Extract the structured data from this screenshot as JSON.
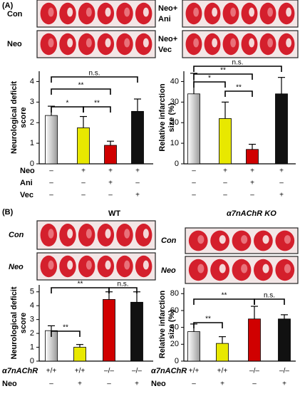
{
  "panels": [
    {
      "label": "(A)",
      "photo_labels": [
        [
          "Con"
        ],
        [
          "Neo"
        ],
        [
          "Neo+",
          "Ani"
        ],
        [
          "Neo+",
          "Vec"
        ]
      ]
    },
    {
      "label": "(B)",
      "headers": [
        "WT",
        "α7nAChR KO"
      ],
      "photo_labels": [
        [
          "Con"
        ],
        [
          "Neo"
        ],
        [
          "Con"
        ],
        [
          "Neo"
        ]
      ]
    }
  ],
  "chart_data": [
    {
      "type": "bar",
      "ylabel": [
        "Neurological deficit",
        "score"
      ],
      "values": [
        2.35,
        1.75,
        0.9,
        2.55
      ],
      "errors": [
        0.45,
        0.55,
        0.2,
        0.6
      ],
      "colors": [
        "#d9d9d9",
        "#e8e800",
        "#d00000",
        "#111111"
      ],
      "ylim": [
        0,
        4.5
      ],
      "yticks": [
        0,
        1,
        2,
        3,
        4
      ],
      "annotations": [
        "n.s.",
        "**",
        "*",
        "**"
      ],
      "condition_rows": [
        {
          "name": "Neo",
          "labels": [
            "–",
            "+",
            "+",
            "+"
          ]
        },
        {
          "name": "Ani",
          "labels": [
            "–",
            "–",
            "+",
            "–"
          ]
        },
        {
          "name": "Vec",
          "labels": [
            "–",
            "–",
            "–",
            "+"
          ]
        }
      ]
    },
    {
      "type": "bar",
      "ylabel": [
        "Relative infarction",
        "size (%)"
      ],
      "values": [
        34,
        22,
        7,
        34
      ],
      "errors": [
        10,
        8,
        2.5,
        8
      ],
      "colors": [
        "#d9d9d9",
        "#e8e800",
        "#d00000",
        "#111111"
      ],
      "ylim": [
        0,
        45
      ],
      "yticks": [
        0,
        10,
        20,
        30,
        40
      ],
      "annotations": [
        "n.s.",
        "*",
        "**",
        "**"
      ],
      "condition_rows": [
        {
          "labels": [
            "–",
            "+",
            "+",
            "+"
          ]
        },
        {
          "labels": [
            "–",
            "–",
            "+",
            "–"
          ]
        },
        {
          "labels": [
            "–",
            "–",
            "–",
            "+"
          ]
        }
      ]
    },
    {
      "type": "bar",
      "ylabel": [
        "Neurological deficit",
        "score"
      ],
      "values": [
        2.2,
        1.0,
        4.45,
        4.25
      ],
      "errors": [
        0.35,
        0.2,
        0.55,
        0.75
      ],
      "colors": [
        "#d9d9d9",
        "#e8e800",
        "#d00000",
        "#111111"
      ],
      "ylim": [
        0,
        5.5
      ],
      "yticks": [
        0,
        1,
        2,
        3,
        4,
        5
      ],
      "annotations": [
        "**",
        "**",
        "n.s."
      ],
      "condition_rows": [
        {
          "name": "α7nAChR",
          "labels": [
            "+/+",
            "+/+",
            "–/–",
            "–/–"
          ]
        },
        {
          "name": "Neo",
          "labels": [
            "–",
            "+",
            "–",
            "+"
          ]
        }
      ]
    },
    {
      "type": "bar",
      "ylabel": [
        "Relative infarction",
        "size (%)"
      ],
      "values": [
        35,
        21,
        50,
        50
      ],
      "errors": [
        9,
        8,
        15,
        5
      ],
      "colors": [
        "#d9d9d9",
        "#e8e800",
        "#d00000",
        "#111111"
      ],
      "ylim": [
        0,
        87
      ],
      "yticks": [
        0,
        20,
        40,
        60,
        80
      ],
      "annotations": [
        "**",
        "**",
        "n.s."
      ],
      "condition_rows": [
        {
          "name": "α7nAChR",
          "labels": [
            "+/+",
            "+/+",
            "–/–",
            "–/–"
          ]
        },
        {
          "name": "Neo",
          "labels": [
            "–",
            "+",
            "–",
            "+"
          ]
        }
      ]
    }
  ]
}
